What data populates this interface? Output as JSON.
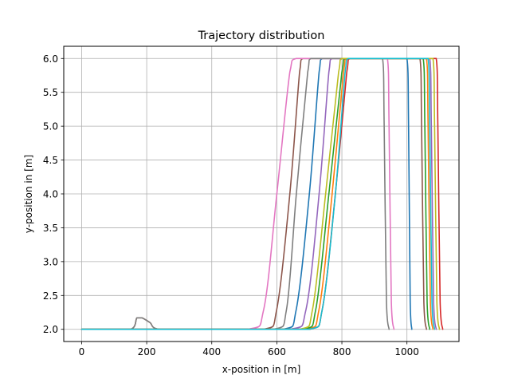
{
  "chart_data": {
    "type": "line",
    "title": "Trajectory distribution",
    "xlabel": "x-position in [m]",
    "ylabel": "y-position in [m]",
    "xlim": [
      -55,
      1160
    ],
    "ylim": [
      1.82,
      6.18
    ],
    "xticks": [
      0,
      200,
      400,
      600,
      800,
      1000
    ],
    "yticks": [
      2.0,
      2.5,
      3.0,
      3.5,
      4.0,
      4.5,
      5.0,
      5.5,
      6.0
    ],
    "xtick_labels": [
      "0",
      "200",
      "400",
      "600",
      "800",
      "1000"
    ],
    "ytick_labels": [
      "2.0",
      "2.5",
      "3.0",
      "3.5",
      "4.0",
      "4.5",
      "5.0",
      "5.5",
      "6.0"
    ],
    "grid": true,
    "legend": false,
    "series": [
      {
        "color": "#1f77b4",
        "x": [
          0,
          620,
          660,
          700,
          730,
          740,
          1000,
          1005,
          1010,
          1015
        ],
        "y": [
          2.0,
          2.0,
          2.3,
          4.0,
          5.8,
          6.0,
          6.0,
          5.0,
          2.4,
          2.0
        ]
      },
      {
        "color": "#ff7f0e",
        "x": [
          0,
          690,
          730,
          770,
          805,
          815,
          1060,
          1065,
          1072,
          1080
        ],
        "y": [
          2.0,
          2.0,
          2.3,
          4.0,
          5.8,
          6.0,
          6.0,
          5.0,
          2.4,
          2.0
        ]
      },
      {
        "color": "#2ca02c",
        "x": [
          0,
          680,
          720,
          760,
          800,
          810,
          1050,
          1055,
          1062,
          1070
        ],
        "y": [
          2.0,
          2.0,
          2.3,
          4.0,
          5.8,
          6.0,
          6.0,
          5.0,
          2.4,
          2.0
        ]
      },
      {
        "color": "#d62728",
        "x": [
          0,
          700,
          740,
          780,
          815,
          825,
          1090,
          1095,
          1102,
          1110
        ],
        "y": [
          2.0,
          2.0,
          2.3,
          4.0,
          5.8,
          6.0,
          6.0,
          5.0,
          2.4,
          2.0
        ]
      },
      {
        "color": "#9467bd",
        "x": [
          0,
          640,
          690,
          730,
          760,
          770,
          1070,
          1075,
          1082,
          1090
        ],
        "y": [
          2.0,
          2.0,
          2.3,
          4.0,
          5.8,
          6.0,
          6.0,
          5.0,
          2.4,
          2.0
        ]
      },
      {
        "color": "#8c564b",
        "x": [
          0,
          150,
          170,
          185,
          210,
          240,
          560,
          600,
          640,
          670,
          680,
          1040,
          1045,
          1052,
          1060
        ],
        "y": [
          2.0,
          2.0,
          2.17,
          2.17,
          2.1,
          2.0,
          2.0,
          2.3,
          4.0,
          5.8,
          6.0,
          6.0,
          5.0,
          2.4,
          2.0
        ]
      },
      {
        "color": "#e377c2",
        "x": [
          0,
          510,
          560,
          600,
          640,
          660,
          940,
          945,
          952,
          960
        ],
        "y": [
          2.0,
          2.0,
          2.3,
          4.0,
          5.8,
          6.0,
          6.0,
          5.0,
          2.4,
          2.0
        ]
      },
      {
        "color": "#7f7f7f",
        "x": [
          0,
          150,
          170,
          185,
          210,
          240,
          590,
          630,
          660,
          695,
          705,
          925,
          930,
          937,
          945
        ],
        "y": [
          2.0,
          2.0,
          2.17,
          2.17,
          2.1,
          2.0,
          2.0,
          2.3,
          4.0,
          5.8,
          6.0,
          6.0,
          5.0,
          2.4,
          2.0
        ]
      },
      {
        "color": "#bcbd22",
        "x": [
          0,
          670,
          710,
          750,
          790,
          800,
          1080,
          1085,
          1092,
          1100
        ],
        "y": [
          2.0,
          2.0,
          2.3,
          4.0,
          5.8,
          6.0,
          6.0,
          5.0,
          2.4,
          2.0
        ]
      },
      {
        "color": "#17becf",
        "x": [
          0,
          700,
          740,
          780,
          810,
          820,
          1065,
          1070,
          1077,
          1085
        ],
        "y": [
          2.0,
          2.0,
          2.3,
          4.0,
          5.8,
          6.0,
          6.0,
          5.0,
          2.4,
          2.0
        ]
      }
    ]
  }
}
